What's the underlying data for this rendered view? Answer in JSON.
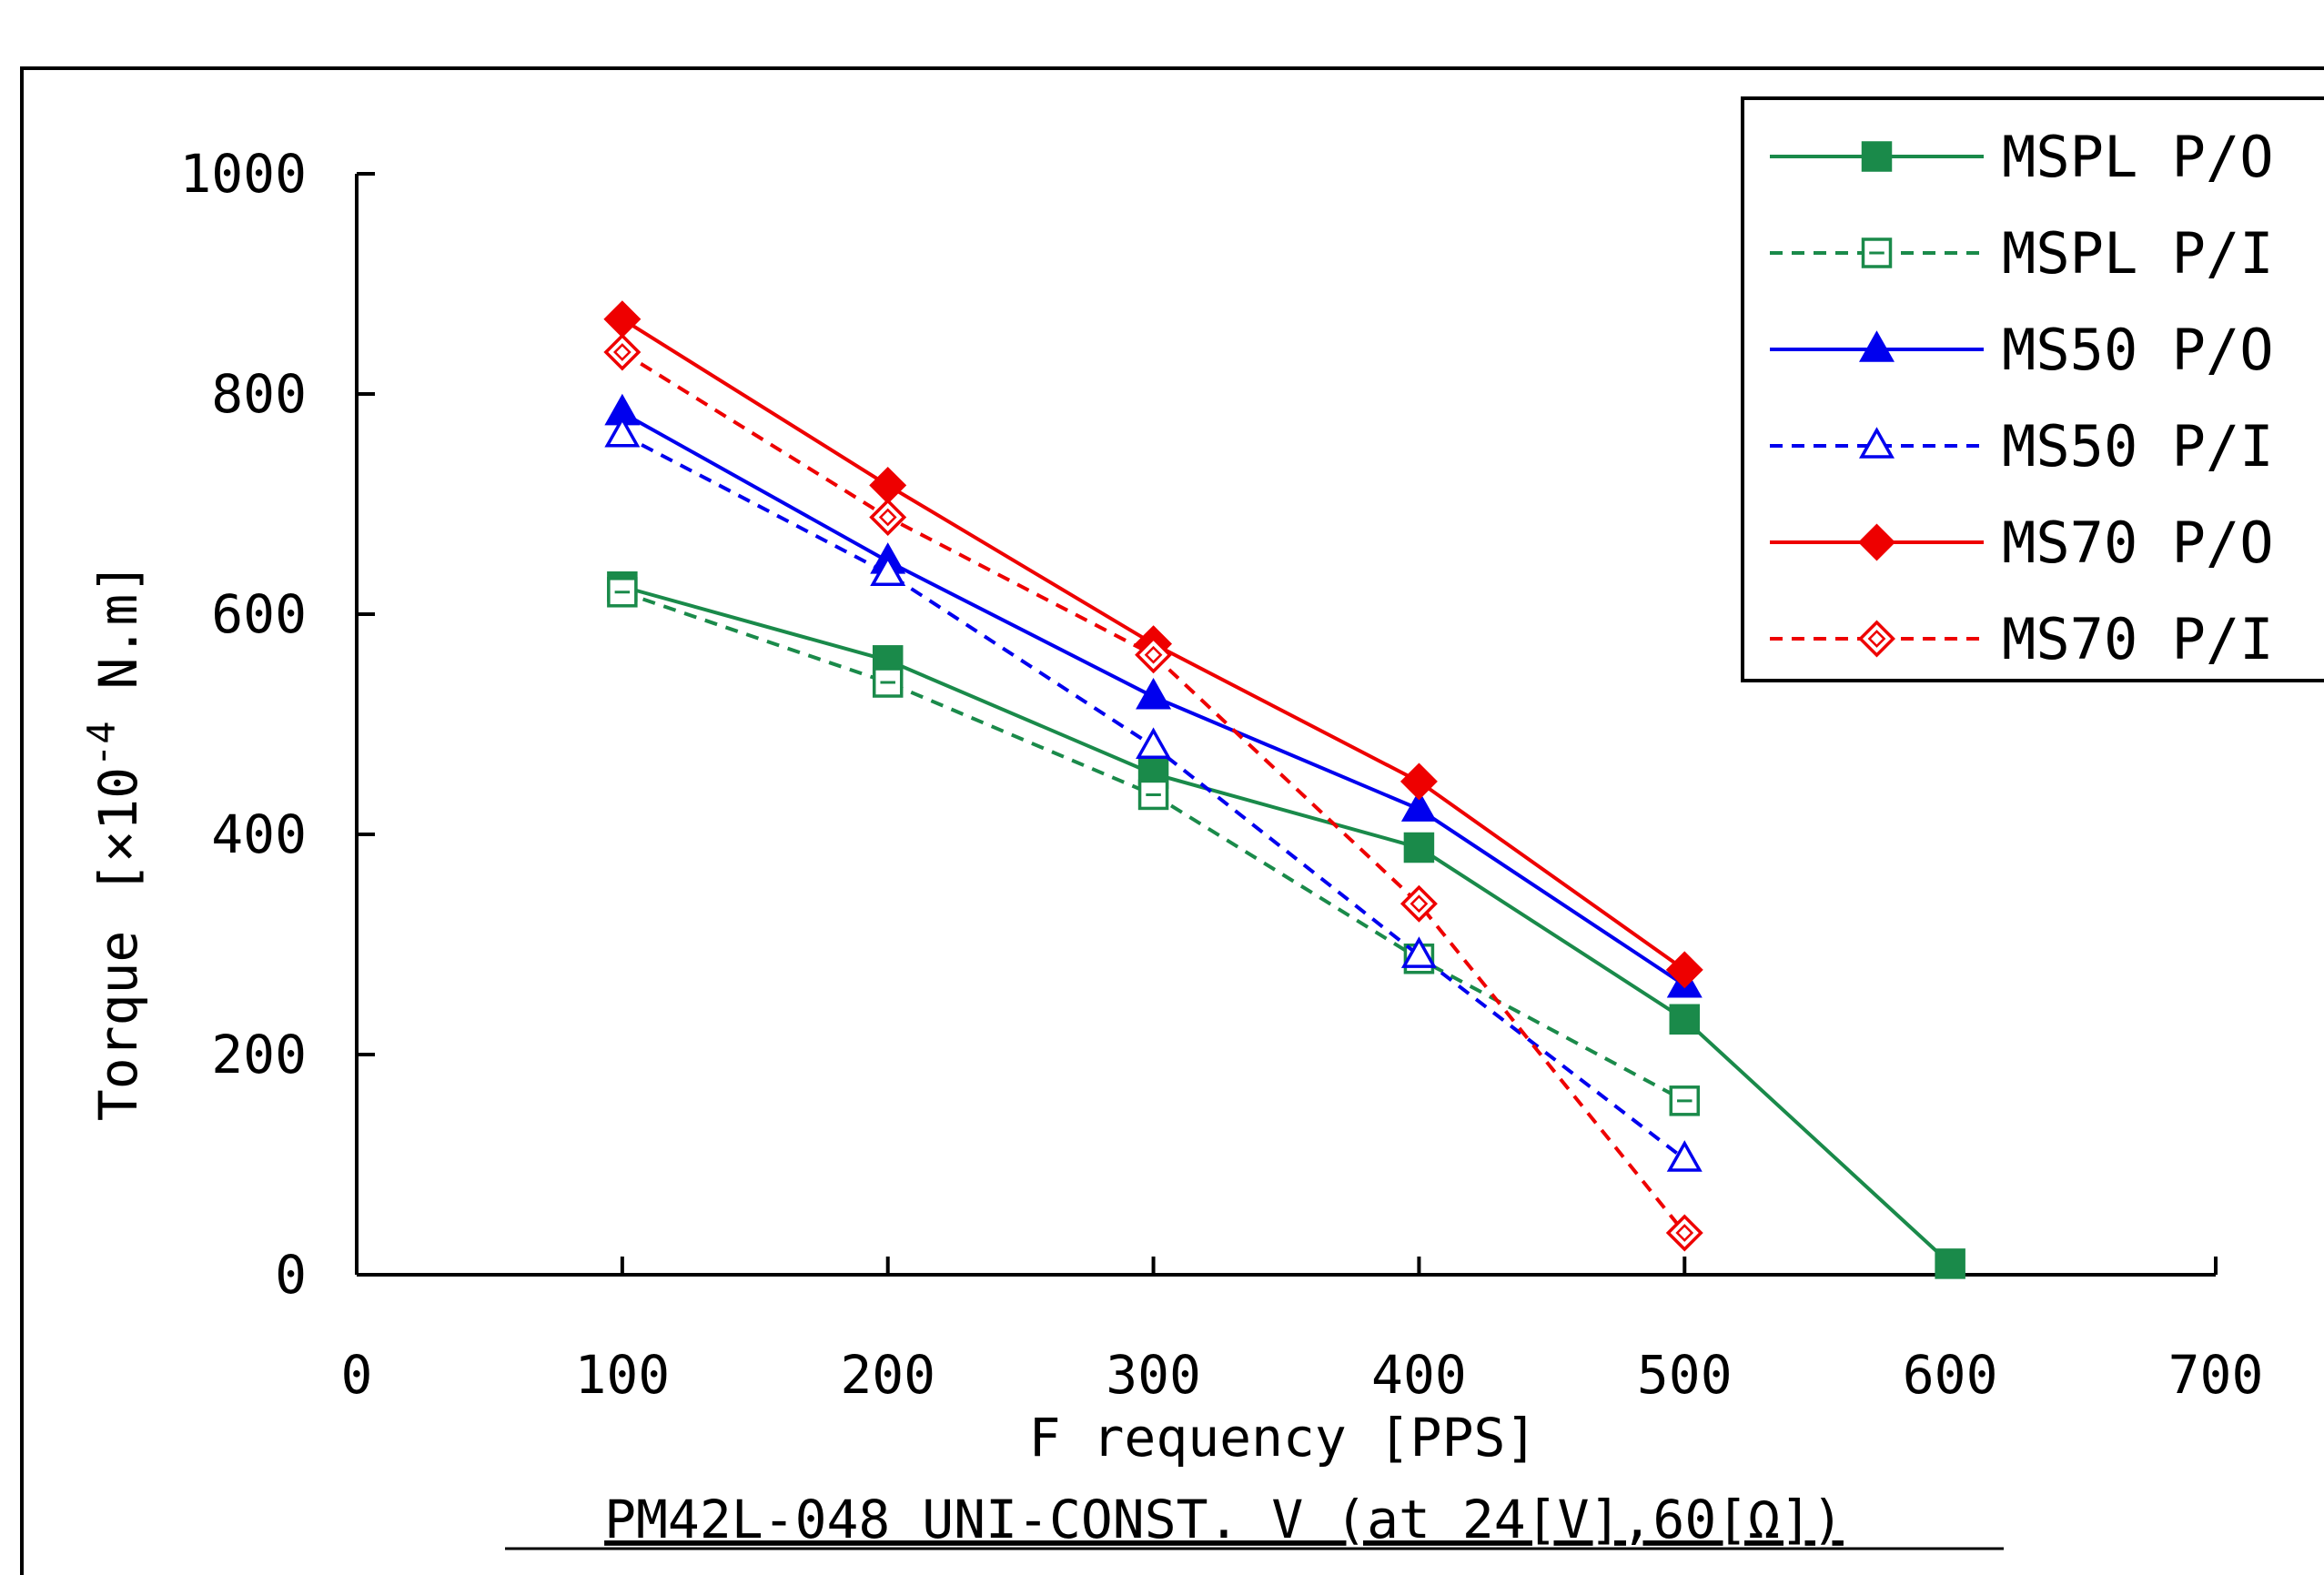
{
  "chart_data": {
    "type": "line",
    "xlabel": "F requency  [PPS]",
    "ylabel_main": "Torque",
    "ylabel_unit_open": "[×10",
    "ylabel_unit_exp": "-4",
    "ylabel_unit_close": " N.m]",
    "caption": "PM42L-048 UNI-CONST. V (at 24[V],60[Ω])",
    "xlim": [
      0,
      700
    ],
    "ylim": [
      0,
      1000
    ],
    "xticks": [
      0,
      100,
      200,
      300,
      400,
      500,
      600,
      700
    ],
    "yticks": [
      0,
      200,
      400,
      600,
      800,
      1000
    ],
    "legend_position": "top-right",
    "grid": false,
    "series": [
      {
        "name": "MSPL P/O",
        "color": "#1a8a4a",
        "dashed": false,
        "marker": "square",
        "filled": true,
        "x": [
          100,
          200,
          300,
          400,
          500,
          600
        ],
        "y": [
          625,
          558,
          455,
          388,
          232,
          10
        ]
      },
      {
        "name": "MSPL P/I",
        "color": "#1a8a4a",
        "dashed": true,
        "marker": "square",
        "filled": false,
        "x": [
          100,
          200,
          300,
          400,
          500
        ],
        "y": [
          620,
          538,
          436,
          287,
          158
        ]
      },
      {
        "name": "MS50 P/O",
        "color": "#0000ee",
        "dashed": false,
        "marker": "triangle",
        "filled": true,
        "x": [
          100,
          200,
          300,
          400,
          500
        ],
        "y": [
          783,
          648,
          525,
          423,
          263
        ]
      },
      {
        "name": "MS50 P/I",
        "color": "#0000ee",
        "dashed": true,
        "marker": "triangle",
        "filled": false,
        "x": [
          100,
          200,
          300,
          400,
          500
        ],
        "y": [
          763,
          637,
          480,
          290,
          105
        ]
      },
      {
        "name": "MS70 P/O",
        "color": "#ee0000",
        "dashed": false,
        "marker": "diamond",
        "filled": true,
        "x": [
          100,
          200,
          300,
          400,
          500
        ],
        "y": [
          868,
          717,
          573,
          448,
          277
        ]
      },
      {
        "name": "MS70 P/I",
        "color": "#ee0000",
        "dashed": true,
        "marker": "diamond",
        "filled": false,
        "x": [
          100,
          200,
          300,
          400,
          500
        ],
        "y": [
          838,
          688,
          563,
          337,
          38
        ]
      }
    ]
  }
}
